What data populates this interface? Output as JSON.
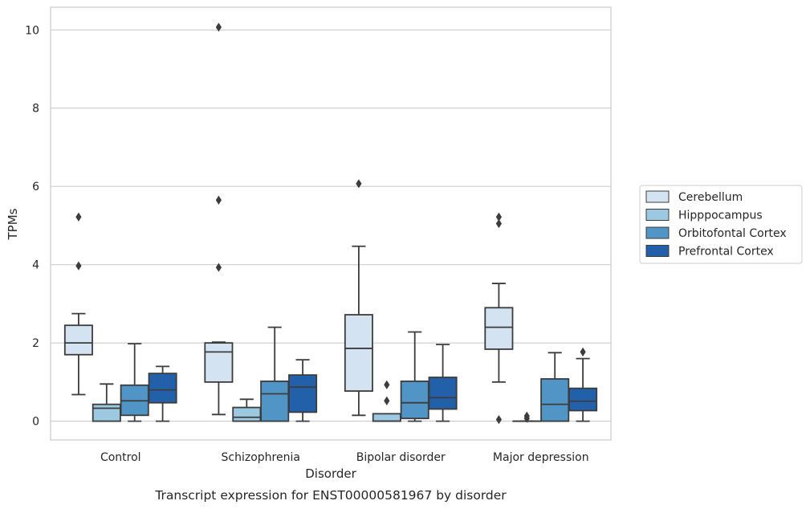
{
  "chart_data": {
    "type": "box",
    "caption": "Transcript expression for ENST00000581967 by disorder",
    "xlabel": "Disorder",
    "ylabel": "TPMs",
    "ylim": [
      -0.48,
      10.58
    ],
    "yticks": [
      0,
      2,
      4,
      6,
      8,
      10
    ],
    "grid": "horizontal",
    "legend_position": "right",
    "categories": [
      "Control",
      "Schizophrenia",
      "Bipolar disorder",
      "Major depression"
    ],
    "series": [
      {
        "name": "Cerebellum",
        "color": "#d3e3f2",
        "boxes": [
          {
            "whisker_low": 0.68,
            "q1": 1.7,
            "median": 2.0,
            "q3": 2.45,
            "whisker_high": 2.75,
            "outliers": [
              3.97,
              5.22
            ]
          },
          {
            "whisker_low": 0.17,
            "q1": 1.0,
            "median": 1.77,
            "q3": 2.0,
            "whisker_high": 2.02,
            "outliers": [
              3.93,
              5.65,
              10.07
            ]
          },
          {
            "whisker_low": 0.15,
            "q1": 0.77,
            "median": 1.86,
            "q3": 2.72,
            "whisker_high": 4.47,
            "outliers": [
              6.07
            ]
          },
          {
            "whisker_low": 1.0,
            "q1": 1.84,
            "median": 2.4,
            "q3": 2.9,
            "whisker_high": 3.52,
            "outliers": [
              0.04,
              5.05,
              5.22
            ]
          }
        ]
      },
      {
        "name": "Hipppocampus",
        "color": "#9dc8e1",
        "boxes": [
          {
            "whisker_low": 0.0,
            "q1": 0.0,
            "median": 0.33,
            "q3": 0.43,
            "whisker_high": 0.95,
            "outliers": []
          },
          {
            "whisker_low": 0.0,
            "q1": 0.0,
            "median": 0.1,
            "q3": 0.35,
            "whisker_high": 0.56,
            "outliers": []
          },
          {
            "whisker_low": 0.0,
            "q1": 0.0,
            "median": 0.0,
            "q3": 0.19,
            "whisker_high": 0.19,
            "outliers": [
              0.52,
              0.93
            ]
          },
          {
            "whisker_low": 0.0,
            "q1": 0.0,
            "median": 0.0,
            "q3": 0.0,
            "whisker_high": 0.0,
            "outliers": [
              0.07,
              0.13
            ]
          }
        ]
      },
      {
        "name": "Orbitofontal Cortex",
        "color": "#5195c6",
        "boxes": [
          {
            "whisker_low": 0.0,
            "q1": 0.15,
            "median": 0.52,
            "q3": 0.92,
            "whisker_high": 1.98,
            "outliers": []
          },
          {
            "whisker_low": 0.0,
            "q1": 0.0,
            "median": 0.7,
            "q3": 1.02,
            "whisker_high": 2.4,
            "outliers": []
          },
          {
            "whisker_low": 0.0,
            "q1": 0.07,
            "median": 0.47,
            "q3": 1.02,
            "whisker_high": 2.28,
            "outliers": []
          },
          {
            "whisker_low": 0.0,
            "q1": 0.0,
            "median": 0.43,
            "q3": 1.08,
            "whisker_high": 1.75,
            "outliers": []
          }
        ]
      },
      {
        "name": "Prefrontal Cortex",
        "color": "#2261a9",
        "boxes": [
          {
            "whisker_low": 0.0,
            "q1": 0.47,
            "median": 0.8,
            "q3": 1.22,
            "whisker_high": 1.4,
            "outliers": []
          },
          {
            "whisker_low": 0.0,
            "q1": 0.23,
            "median": 0.87,
            "q3": 1.18,
            "whisker_high": 1.57,
            "outliers": []
          },
          {
            "whisker_low": 0.0,
            "q1": 0.31,
            "median": 0.6,
            "q3": 1.12,
            "whisker_high": 1.96,
            "outliers": []
          },
          {
            "whisker_low": 0.0,
            "q1": 0.27,
            "median": 0.51,
            "q3": 0.84,
            "whisker_high": 1.6,
            "outliers": [
              1.77
            ]
          }
        ]
      }
    ]
  }
}
